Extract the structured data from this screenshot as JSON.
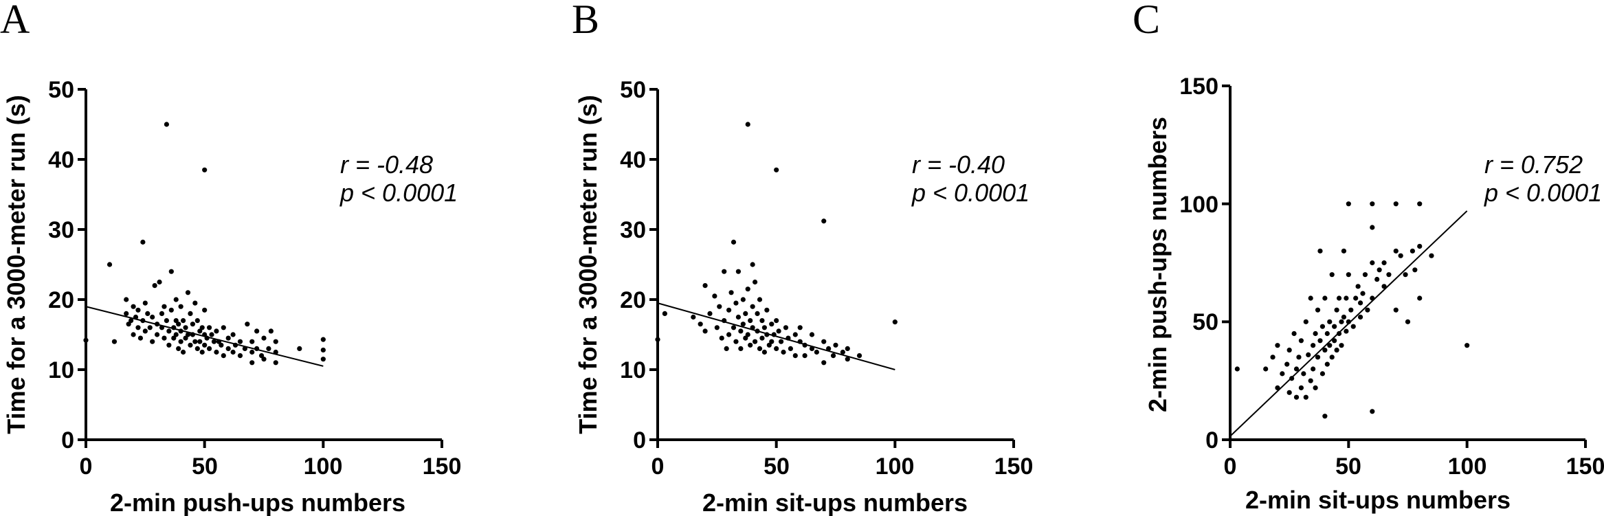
{
  "chart_data": [
    {
      "panel": "A",
      "type": "scatter",
      "xlabel": "2-min push-ups numbers",
      "ylabel": "Time for a 3000-meter run (s)",
      "xlim": [
        0,
        150
      ],
      "ylim": [
        0,
        50
      ],
      "xticks": [
        "0",
        "50",
        "100",
        "150"
      ],
      "yticks": [
        "0",
        "10",
        "20",
        "30",
        "40",
        "50"
      ],
      "grid": false,
      "annotation": {
        "line1": "r = -0.48",
        "line2": "p < 0.0001"
      },
      "regression": {
        "x": [
          0,
          100
        ],
        "y": [
          19.0,
          10.5
        ]
      },
      "points": [
        [
          0,
          14.2
        ],
        [
          10,
          25
        ],
        [
          12,
          14
        ],
        [
          17,
          20
        ],
        [
          17,
          18
        ],
        [
          18,
          16.5
        ],
        [
          19,
          17
        ],
        [
          20,
          19
        ],
        [
          20,
          15
        ],
        [
          21,
          17.5
        ],
        [
          22,
          18.5
        ],
        [
          22,
          16
        ],
        [
          23,
          14.5
        ],
        [
          24,
          28.2
        ],
        [
          24,
          17
        ],
        [
          25,
          19.5
        ],
        [
          25,
          15.5
        ],
        [
          26,
          18
        ],
        [
          27,
          16
        ],
        [
          28,
          17.5
        ],
        [
          28,
          14
        ],
        [
          29,
          22
        ],
        [
          30,
          16.5
        ],
        [
          30,
          15
        ],
        [
          31,
          22.5
        ],
        [
          32,
          18
        ],
        [
          32,
          16
        ],
        [
          33,
          14.5
        ],
        [
          33,
          19
        ],
        [
          34,
          45
        ],
        [
          34,
          17
        ],
        [
          35,
          15.5
        ],
        [
          35,
          13.5
        ],
        [
          36,
          24
        ],
        [
          36,
          18.5
        ],
        [
          37,
          16
        ],
        [
          37,
          14.5
        ],
        [
          38,
          17
        ],
        [
          38,
          15
        ],
        [
          38,
          20
        ],
        [
          39,
          16.5
        ],
        [
          39,
          13
        ],
        [
          40,
          19
        ],
        [
          40,
          15.5
        ],
        [
          40,
          14
        ],
        [
          41,
          17
        ],
        [
          41,
          12.5
        ],
        [
          42,
          16
        ],
        [
          42,
          14.5
        ],
        [
          43,
          21
        ],
        [
          43,
          15
        ],
        [
          44,
          18
        ],
        [
          44,
          13.5
        ],
        [
          45,
          16.5
        ],
        [
          45,
          15
        ],
        [
          46,
          14
        ],
        [
          46,
          19.5
        ],
        [
          47,
          13
        ],
        [
          47,
          17
        ],
        [
          48,
          15.5
        ],
        [
          48,
          14
        ],
        [
          49,
          16
        ],
        [
          49,
          12.5
        ],
        [
          50,
          38.5
        ],
        [
          50,
          18.5
        ],
        [
          50,
          15
        ],
        [
          50,
          13.5
        ],
        [
          51,
          14.5
        ],
        [
          52,
          16
        ],
        [
          52,
          13
        ],
        [
          53,
          15
        ],
        [
          54,
          14
        ],
        [
          55,
          15.5
        ],
        [
          55,
          12.5
        ],
        [
          56,
          14
        ],
        [
          57,
          13.5
        ],
        [
          58,
          16
        ],
        [
          58,
          12
        ],
        [
          60,
          14.5
        ],
        [
          60,
          13
        ],
        [
          62,
          15
        ],
        [
          62,
          12.5
        ],
        [
          63,
          13.5
        ],
        [
          65,
          14
        ],
        [
          65,
          12
        ],
        [
          67,
          13
        ],
        [
          68,
          16.5
        ],
        [
          70,
          14
        ],
        [
          70,
          12.5
        ],
        [
          70,
          11
        ],
        [
          72,
          15.5
        ],
        [
          72,
          13
        ],
        [
          74,
          12
        ],
        [
          75,
          14.5
        ],
        [
          75,
          11.5
        ],
        [
          77,
          13
        ],
        [
          78,
          15.5
        ],
        [
          80,
          12.5
        ],
        [
          80,
          11
        ],
        [
          80,
          14
        ],
        [
          90,
          13
        ],
        [
          100,
          14.3
        ],
        [
          100,
          12.8
        ],
        [
          100,
          11.5
        ]
      ]
    },
    {
      "panel": "B",
      "type": "scatter",
      "xlabel": "2-min sit-ups numbers",
      "ylabel": "Time for a 3000-meter run (s)",
      "xlim": [
        0,
        150
      ],
      "ylim": [
        0,
        50
      ],
      "xticks": [
        "0",
        "50",
        "100",
        "150"
      ],
      "yticks": [
        "0",
        "10",
        "20",
        "30",
        "40",
        "50"
      ],
      "grid": false,
      "annotation": {
        "line1": "r = -0.40",
        "line2": "p < 0.0001"
      },
      "regression": {
        "x": [
          0,
          100
        ],
        "y": [
          19.5,
          10.0
        ]
      },
      "points": [
        [
          0,
          14.3
        ],
        [
          3,
          18
        ],
        [
          15,
          17.5
        ],
        [
          18,
          16.5
        ],
        [
          20,
          22
        ],
        [
          20,
          15.5
        ],
        [
          22,
          18
        ],
        [
          24,
          20.5
        ],
        [
          25,
          16
        ],
        [
          26,
          19
        ],
        [
          27,
          14.5
        ],
        [
          28,
          24
        ],
        [
          28,
          17
        ],
        [
          29,
          13
        ],
        [
          30,
          18.5
        ],
        [
          30,
          15
        ],
        [
          31,
          21
        ],
        [
          32,
          28.2
        ],
        [
          32,
          16
        ],
        [
          33,
          19.5
        ],
        [
          33,
          14
        ],
        [
          34,
          24
        ],
        [
          34,
          17.5
        ],
        [
          35,
          15.5
        ],
        [
          35,
          13
        ],
        [
          36,
          20
        ],
        [
          36,
          16.5
        ],
        [
          37,
          18
        ],
        [
          37,
          14.5
        ],
        [
          38,
          45
        ],
        [
          38,
          21.5
        ],
        [
          38,
          15
        ],
        [
          39,
          17
        ],
        [
          39,
          13.5
        ],
        [
          40,
          25
        ],
        [
          40,
          19
        ],
        [
          40,
          16
        ],
        [
          41,
          22.5
        ],
        [
          41,
          14
        ],
        [
          42,
          18
        ],
        [
          42,
          15.5
        ],
        [
          43,
          20
        ],
        [
          43,
          13
        ],
        [
          44,
          17
        ],
        [
          44,
          14.5
        ],
        [
          45,
          16
        ],
        [
          45,
          12.5
        ],
        [
          46,
          18.5
        ],
        [
          46,
          15
        ],
        [
          47,
          13.5
        ],
        [
          48,
          16.5
        ],
        [
          48,
          14
        ],
        [
          49,
          15
        ],
        [
          50,
          38.5
        ],
        [
          50,
          17
        ],
        [
          50,
          13
        ],
        [
          51,
          15.5
        ],
        [
          52,
          14
        ],
        [
          53,
          12.5
        ],
        [
          54,
          16
        ],
        [
          55,
          14.5
        ],
        [
          56,
          13
        ],
        [
          58,
          15
        ],
        [
          58,
          12
        ],
        [
          60,
          14
        ],
        [
          60,
          16
        ],
        [
          62,
          13.5
        ],
        [
          62,
          12
        ],
        [
          65,
          15
        ],
        [
          65,
          13
        ],
        [
          67,
          12.5
        ],
        [
          70,
          31.2
        ],
        [
          70,
          14
        ],
        [
          70,
          11
        ],
        [
          72,
          13
        ],
        [
          74,
          12
        ],
        [
          75,
          13.5
        ],
        [
          78,
          12.5
        ],
        [
          80,
          11.5
        ],
        [
          80,
          13
        ],
        [
          85,
          12
        ],
        [
          100,
          16.8
        ]
      ]
    },
    {
      "panel": "C",
      "type": "scatter",
      "xlabel": "2-min sit-ups numbers",
      "ylabel": "2-min push-ups numbers",
      "xlim": [
        0,
        150
      ],
      "ylim": [
        0,
        150
      ],
      "xticks": [
        "0",
        "50",
        "100",
        "150"
      ],
      "yticks": [
        "0",
        "50",
        "100",
        "150"
      ],
      "grid": false,
      "annotation": {
        "line1": "r = 0.752",
        "line2": "p < 0.0001"
      },
      "regression": {
        "x": [
          0,
          100
        ],
        "y": [
          1.5,
          97
        ]
      },
      "points": [
        [
          3,
          30
        ],
        [
          15,
          30
        ],
        [
          18,
          35
        ],
        [
          20,
          22
        ],
        [
          20,
          40
        ],
        [
          22,
          28
        ],
        [
          24,
          32
        ],
        [
          25,
          20
        ],
        [
          25,
          38
        ],
        [
          26,
          26
        ],
        [
          27,
          45
        ],
        [
          28,
          18
        ],
        [
          28,
          30
        ],
        [
          29,
          35
        ],
        [
          30,
          22
        ],
        [
          30,
          42
        ],
        [
          31,
          28
        ],
        [
          32,
          50
        ],
        [
          32,
          18
        ],
        [
          33,
          36
        ],
        [
          34,
          25
        ],
        [
          34,
          60
        ],
        [
          35,
          40
        ],
        [
          35,
          30
        ],
        [
          36,
          45
        ],
        [
          36,
          22
        ],
        [
          37,
          55
        ],
        [
          37,
          35
        ],
        [
          38,
          80
        ],
        [
          38,
          42
        ],
        [
          39,
          28
        ],
        [
          39,
          48
        ],
        [
          40,
          10
        ],
        [
          40,
          38
        ],
        [
          40,
          60
        ],
        [
          41,
          45
        ],
        [
          41,
          32
        ],
        [
          42,
          50
        ],
        [
          42,
          40
        ],
        [
          43,
          70
        ],
        [
          43,
          35
        ],
        [
          44,
          48
        ],
        [
          44,
          42
        ],
        [
          45,
          55
        ],
        [
          45,
          38
        ],
        [
          46,
          60
        ],
        [
          46,
          45
        ],
        [
          47,
          50
        ],
        [
          47,
          40
        ],
        [
          48,
          80
        ],
        [
          48,
          52
        ],
        [
          49,
          46
        ],
        [
          49,
          60
        ],
        [
          50,
          100
        ],
        [
          50,
          70
        ],
        [
          50,
          50
        ],
        [
          51,
          55
        ],
        [
          52,
          48
        ],
        [
          53,
          60
        ],
        [
          54,
          65
        ],
        [
          55,
          52
        ],
        [
          55,
          58
        ],
        [
          56,
          62
        ],
        [
          57,
          70
        ],
        [
          58,
          55
        ],
        [
          60,
          90
        ],
        [
          60,
          100
        ],
        [
          60,
          75
        ],
        [
          60,
          60
        ],
        [
          60,
          12
        ],
        [
          62,
          68
        ],
        [
          63,
          72
        ],
        [
          65,
          65
        ],
        [
          65,
          75
        ],
        [
          67,
          70
        ],
        [
          70,
          100
        ],
        [
          70,
          80
        ],
        [
          70,
          55
        ],
        [
          72,
          78
        ],
        [
          74,
          70
        ],
        [
          75,
          50
        ],
        [
          77,
          80
        ],
        [
          78,
          72
        ],
        [
          80,
          100
        ],
        [
          80,
          60
        ],
        [
          80,
          82
        ],
        [
          85,
          78
        ],
        [
          100,
          40
        ]
      ]
    }
  ]
}
